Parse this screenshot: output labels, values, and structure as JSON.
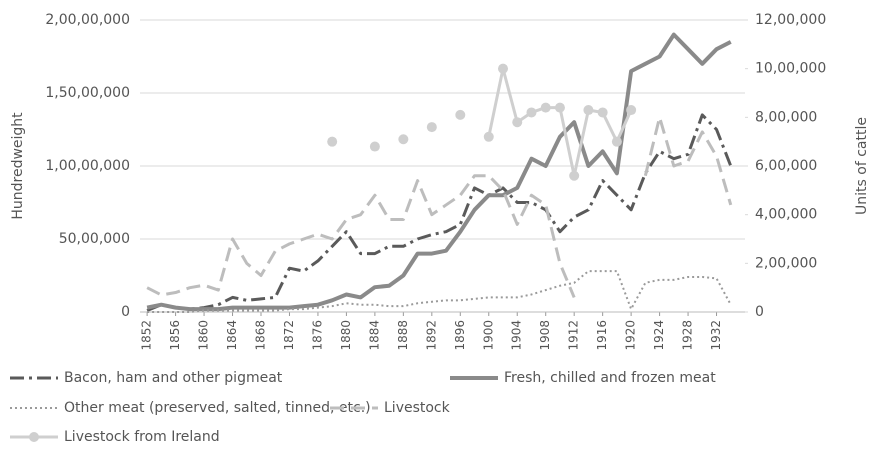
{
  "chart_data": {
    "type": "line",
    "ylabel": "Hundredweight",
    "y2label": "Units of cattle",
    "x": [
      1852,
      1854,
      1856,
      1858,
      1860,
      1862,
      1864,
      1866,
      1868,
      1870,
      1872,
      1874,
      1876,
      1878,
      1880,
      1882,
      1884,
      1886,
      1888,
      1890,
      1892,
      1894,
      1896,
      1898,
      1900,
      1902,
      1904,
      1906,
      1908,
      1910,
      1912,
      1914,
      1916,
      1918,
      1920,
      1922,
      1924,
      1926,
      1928,
      1930,
      1932,
      1934
    ],
    "xlim": [
      1851,
      1936
    ],
    "xticks": [
      1852,
      1856,
      1860,
      1864,
      1868,
      1872,
      1876,
      1880,
      1884,
      1888,
      1892,
      1896,
      1900,
      1904,
      1908,
      1912,
      1916,
      1920,
      1924,
      1928,
      1932
    ],
    "ylim": [
      0,
      20000000
    ],
    "yticks": [
      {
        "value": 0,
        "label": "0"
      },
      {
        "value": 5000000,
        "label": "50,00,000"
      },
      {
        "value": 10000000,
        "label": "1,00,00,000"
      },
      {
        "value": 15000000,
        "label": "1,50,00,000"
      },
      {
        "value": 20000000,
        "label": "2,00,00,000"
      }
    ],
    "y2lim": [
      0,
      1200000
    ],
    "y2ticks": [
      {
        "value": 0,
        "label": "0"
      },
      {
        "value": 200000,
        "label": "2,00,000"
      },
      {
        "value": 400000,
        "label": "4,00,000"
      },
      {
        "value": 600000,
        "label": "6,00,000"
      },
      {
        "value": 800000,
        "label": "8,00,000"
      },
      {
        "value": 1000000,
        "label": "10,00,000"
      },
      {
        "value": 1200000,
        "label": "12,00,000"
      }
    ],
    "grid": true,
    "series": [
      {
        "name": "Bacon, ham and other pigmeat",
        "color": "#5a5a5a",
        "line_style": "dashdot",
        "values": [
          100000,
          500000,
          300000,
          200000,
          300000,
          500000,
          1000000,
          800000,
          900000,
          1000000,
          3000000,
          2800000,
          3500000,
          4500000,
          5500000,
          4000000,
          4000000,
          4500000,
          4500000,
          5000000,
          5300000,
          5500000,
          6000000,
          8500000,
          8000000,
          8500000,
          7500000,
          7500000,
          7000000,
          5500000,
          6500000,
          7000000,
          9000000,
          8000000,
          7000000,
          9500000,
          11000000,
          10500000,
          10800000,
          13500000,
          12500000,
          10000000
        ]
      },
      {
        "name": "Fresh, chilled and frozen meat",
        "color": "#8a8a8a",
        "line_style": "solid",
        "values": [
          300000,
          500000,
          300000,
          200000,
          200000,
          200000,
          300000,
          300000,
          300000,
          300000,
          300000,
          400000,
          500000,
          800000,
          1200000,
          1000000,
          1700000,
          1800000,
          2500000,
          4000000,
          4000000,
          4200000,
          5500000,
          7000000,
          8000000,
          8000000,
          8500000,
          10500000,
          10000000,
          12000000,
          13000000,
          10000000,
          11000000,
          9500000,
          16500000,
          17000000,
          17500000,
          19000000,
          18000000,
          17000000,
          18000000,
          18500000
        ]
      },
      {
        "name": "Other meat (preserved, salted, tinned, etc.)",
        "color": "#9a9a9a",
        "line_style": "dotted",
        "values": [
          0,
          0,
          0,
          0,
          100000,
          100000,
          100000,
          100000,
          100000,
          100000,
          200000,
          200000,
          300000,
          400000,
          600000,
          500000,
          500000,
          400000,
          400000,
          600000,
          700000,
          800000,
          800000,
          900000,
          1000000,
          1000000,
          1000000,
          1200000,
          1500000,
          1800000,
          2000000,
          2800000,
          2800000,
          2800000,
          200000,
          2000000,
          2200000,
          2200000,
          2400000,
          2400000,
          2300000,
          500000
        ]
      },
      {
        "name": "Livestock",
        "color": "#bdbdbd",
        "line_style": "dashed",
        "axis": "y2",
        "values": [
          100000,
          70000,
          80000,
          100000,
          110000,
          90000,
          300000,
          200000,
          150000,
          250000,
          280000,
          300000,
          320000,
          300000,
          380000,
          400000,
          480000,
          380000,
          380000,
          540000,
          400000,
          440000,
          480000,
          560000,
          560000,
          500000,
          360000,
          480000,
          440000,
          200000,
          60000,
          null,
          null,
          null,
          null,
          560000,
          800000,
          600000,
          620000,
          740000,
          640000,
          440000
        ]
      },
      {
        "name": "Livestock from Ireland",
        "color": "#cfcfcf",
        "line_style": "solid-marker",
        "axis": "y2",
        "values": [
          null,
          null,
          null,
          null,
          null,
          null,
          null,
          null,
          null,
          null,
          null,
          null,
          null,
          700000,
          null,
          null,
          680000,
          null,
          710000,
          null,
          760000,
          null,
          810000,
          null,
          720000,
          1000000,
          780000,
          820000,
          840000,
          840000,
          560000,
          830000,
          820000,
          700000,
          830000,
          null,
          null,
          null,
          null,
          null,
          null,
          null
        ]
      }
    ]
  }
}
